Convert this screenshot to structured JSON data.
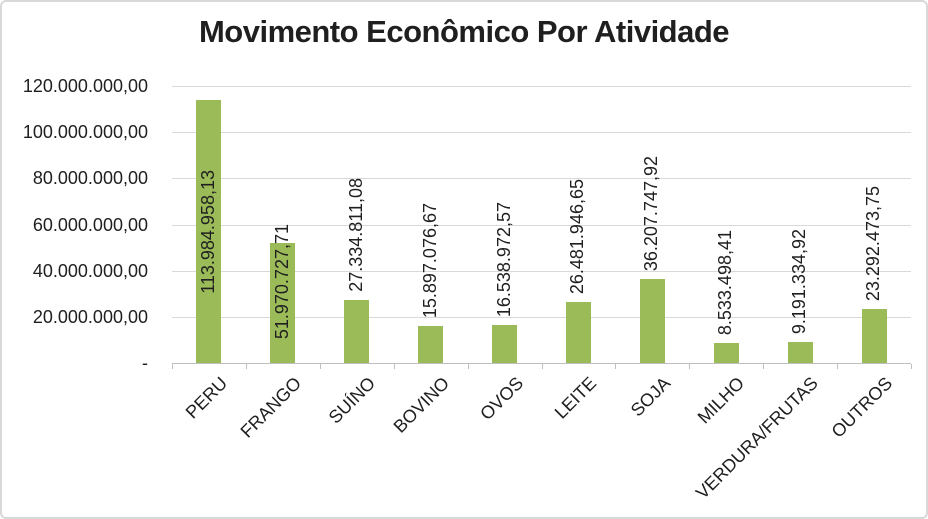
{
  "chart_data": {
    "type": "bar",
    "title": "Movimento Econômico Por Atividade",
    "categories": [
      "PERU",
      "FRANGO",
      "SUÍNO",
      "BOVINO",
      "OVOS",
      "LEITE",
      "SOJA",
      "MILHO",
      "VERDURA/FRUTAS",
      "OUTROS"
    ],
    "values": [
      113984958.13,
      51970727.71,
      27334811.08,
      15897076.67,
      16538972.57,
      26481946.65,
      36207747.92,
      8533498.41,
      9191334.92,
      23292473.75
    ],
    "value_labels": [
      "113.984.958,13",
      "51.970.727,71",
      "27.334.811,08",
      "15.897.076,67",
      "16.538.972,57",
      "26.481.946,65",
      "36.207.747,92",
      "8.533.498,41",
      "9.191.334,92",
      "23.292.473,75"
    ],
    "xlabel": "",
    "ylabel": "",
    "ylim": [
      0,
      120000000
    ],
    "y_axis": {
      "tick_values": [
        120000000,
        100000000,
        80000000,
        60000000,
        40000000,
        20000000,
        0
      ],
      "tick_labels": [
        "120.000.000,00",
        "100.000.000,00",
        "80.000.000,00",
        "60.000.000,00",
        "40.000.000,00",
        "20.000.000,00",
        "-"
      ]
    },
    "grid": "horizontal",
    "legend": "none",
    "colors": {
      "bar": "#9BBB59",
      "gridline": "#D9D9D9",
      "axis_line": "#BFBFBF",
      "text": "#1f1f1f",
      "background": "#FFFFFF",
      "frame_border": "#D9D9D9"
    }
  }
}
